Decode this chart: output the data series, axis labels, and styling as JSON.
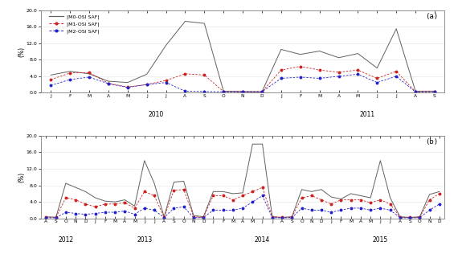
{
  "panel_a": {
    "label": "(a)",
    "ylim": [
      0,
      20.0
    ],
    "yticks": [
      0.0,
      4.0,
      8.0,
      12.0,
      16.0,
      20.0
    ],
    "ytick_labels": [
      "0.0",
      "4.0",
      "8.0",
      "12.0",
      "16.0",
      "20.0"
    ],
    "ylabel": "(%)",
    "xtick_labels": [
      "J",
      "F",
      "M",
      "A",
      "M",
      "J",
      "J",
      "A",
      "S",
      "O",
      "N",
      "D",
      "J",
      "F",
      "M",
      "A",
      "M",
      "J",
      "J",
      "A",
      "S"
    ],
    "year_labels": [
      [
        "2010",
        5.5
      ],
      [
        "2011",
        16.5
      ]
    ],
    "n_points": 21,
    "M0": [
      4.3,
      5.2,
      4.6,
      2.8,
      2.5,
      4.5,
      11.5,
      17.3,
      16.8,
      0.4,
      0.3,
      0.25,
      10.5,
      9.3,
      10.1,
      8.5,
      9.5,
      6.0,
      15.5,
      0.4,
      0.4
    ],
    "M1": [
      3.2,
      4.8,
      4.9,
      2.3,
      1.4,
      2.0,
      3.0,
      4.6,
      4.3,
      0.3,
      0.3,
      0.25,
      5.5,
      6.4,
      5.5,
      5.0,
      5.5,
      3.5,
      5.2,
      0.25,
      0.35
    ],
    "M2": [
      1.8,
      3.2,
      3.8,
      2.2,
      1.3,
      2.0,
      2.5,
      0.4,
      0.3,
      0.25,
      0.25,
      0.25,
      3.5,
      3.8,
      3.5,
      4.0,
      4.5,
      2.5,
      4.0,
      0.2,
      0.25
    ]
  },
  "panel_b": {
    "label": "(b)",
    "ylim": [
      0,
      20.0
    ],
    "yticks": [
      0.0,
      4.0,
      8.0,
      12.0,
      16.0,
      20.0
    ],
    "ytick_labels": [
      "0.0",
      "4.0",
      "8.0",
      "12.0",
      "16.0",
      "20.0"
    ],
    "ylabel": "(%)",
    "xtick_labels": [
      "A",
      "S",
      "O",
      "N",
      "D",
      "J",
      "F",
      "M",
      "A",
      "M",
      "J",
      "J",
      "A",
      "S",
      "O",
      "N",
      "D",
      "J",
      "F",
      "M",
      "A",
      "M",
      "J",
      "J",
      "A",
      "S",
      "O",
      "N",
      "D",
      "J",
      "F",
      "M",
      "A",
      "M",
      "J",
      "J",
      "A",
      "S",
      "O",
      "N",
      "D"
    ],
    "year_labels": [
      [
        "2012",
        2.0
      ],
      [
        "2013",
        10.0
      ],
      [
        "2014",
        22.0
      ],
      [
        "2015",
        34.0
      ]
    ],
    "n_points": 41,
    "M0": [
      0.4,
      0.3,
      8.5,
      7.5,
      6.5,
      5.0,
      4.2,
      4.0,
      4.5,
      3.0,
      14.0,
      8.5,
      0.4,
      8.8,
      9.0,
      0.7,
      0.4,
      6.5,
      6.5,
      6.0,
      6.2,
      18.0,
      18.0,
      0.4,
      0.25,
      0.4,
      7.0,
      6.5,
      7.0,
      5.2,
      4.7,
      6.0,
      5.5,
      5.0,
      14.0,
      5.0,
      0.4,
      0.25,
      0.4,
      5.8,
      6.5
    ],
    "M1": [
      0.25,
      0.25,
      5.0,
      4.5,
      3.5,
      2.8,
      3.5,
      3.5,
      3.8,
      2.5,
      6.5,
      5.5,
      0.3,
      6.8,
      7.0,
      0.4,
      0.25,
      5.5,
      5.5,
      4.5,
      5.5,
      6.5,
      7.5,
      0.4,
      0.25,
      0.3,
      5.0,
      5.5,
      4.5,
      3.5,
      4.5,
      4.5,
      4.5,
      3.8,
      4.5,
      3.5,
      0.3,
      0.25,
      0.3,
      4.5,
      6.0
    ],
    "M2": [
      0.15,
      0.15,
      1.5,
      1.2,
      1.0,
      1.2,
      1.5,
      1.5,
      1.8,
      1.0,
      2.5,
      2.0,
      0.2,
      2.5,
      2.8,
      0.2,
      0.2,
      2.0,
      2.0,
      2.0,
      2.5,
      4.0,
      5.5,
      0.2,
      0.15,
      0.2,
      2.5,
      2.0,
      2.0,
      1.5,
      2.0,
      2.5,
      2.5,
      2.0,
      2.5,
      2.0,
      0.2,
      0.15,
      0.2,
      2.0,
      3.5
    ]
  },
  "colors": {
    "M0": "#606060",
    "M1": "#cc2222",
    "M2": "#2222cc"
  },
  "legend_labels": [
    "|M0-OSI SAF|",
    "|M1-OSI SAF|",
    "|M2-OSI SAF|"
  ],
  "bg_color": "#ffffff",
  "fig_bg": "#ffffff"
}
